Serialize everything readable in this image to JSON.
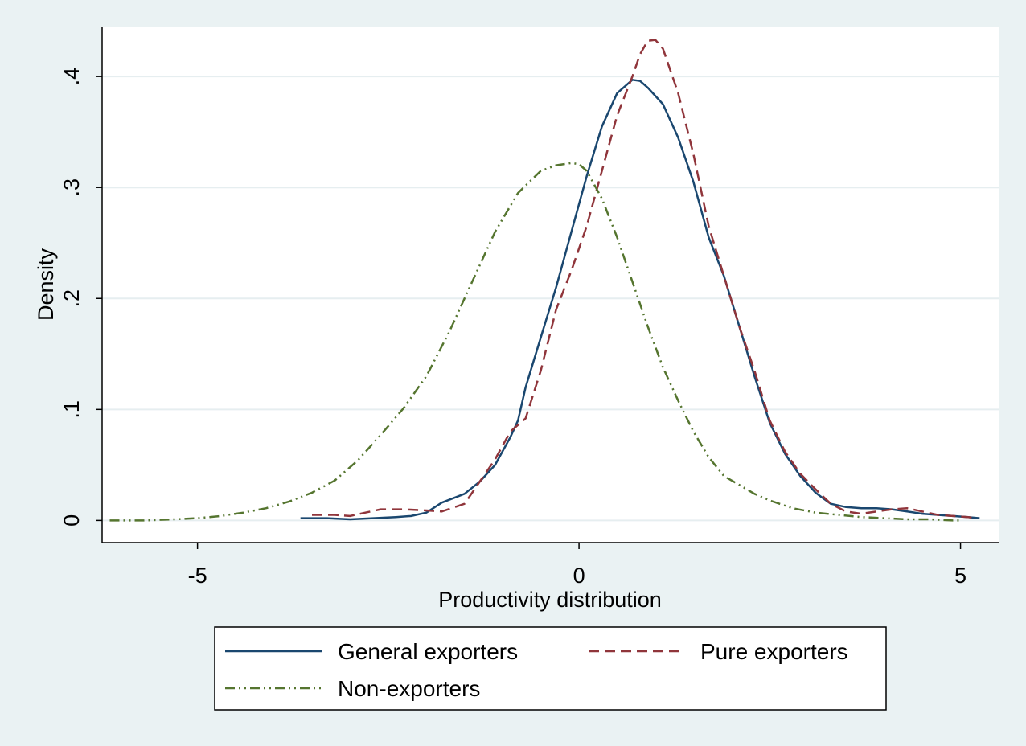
{
  "chart_data": {
    "type": "line",
    "title": "",
    "xlabel": "Productivity distribution",
    "ylabel": "Density",
    "xlim": [
      -6.25,
      5.5
    ],
    "ylim": [
      -0.02,
      0.445
    ],
    "grid": true,
    "legend_position": "bottom",
    "x_ticks": [
      -5,
      0,
      5
    ],
    "x_tick_labels": [
      "-5",
      "0",
      "5"
    ],
    "y_ticks": [
      0,
      0.1,
      0.2,
      0.3,
      0.4
    ],
    "y_tick_labels": [
      "0",
      ".1",
      ".2",
      ".3",
      ".4"
    ],
    "series": [
      {
        "name": "General exporters",
        "color": "#1a476f",
        "dash": "solid",
        "x": [
          -3.65,
          -3.3,
          -3.0,
          -2.7,
          -2.4,
          -2.2,
          -2.0,
          -1.8,
          -1.5,
          -1.3,
          -1.1,
          -0.9,
          -0.8,
          -0.7,
          -0.5,
          -0.3,
          -0.1,
          0.1,
          0.3,
          0.5,
          0.7,
          0.8,
          0.9,
          1.1,
          1.3,
          1.5,
          1.7,
          1.9,
          2.1,
          2.3,
          2.5,
          2.7,
          2.9,
          3.1,
          3.3,
          3.5,
          3.7,
          3.9,
          4.1,
          4.3,
          4.5,
          4.7,
          4.9,
          5.1,
          5.25
        ],
        "y": [
          0.002,
          0.002,
          0.001,
          0.002,
          0.003,
          0.004,
          0.007,
          0.016,
          0.024,
          0.035,
          0.05,
          0.075,
          0.09,
          0.12,
          0.165,
          0.21,
          0.26,
          0.31,
          0.355,
          0.385,
          0.397,
          0.396,
          0.39,
          0.375,
          0.345,
          0.305,
          0.255,
          0.22,
          0.175,
          0.13,
          0.088,
          0.06,
          0.04,
          0.025,
          0.015,
          0.012,
          0.011,
          0.011,
          0.01,
          0.008,
          0.006,
          0.005,
          0.004,
          0.003,
          0.002
        ]
      },
      {
        "name": "Pure exporters",
        "color": "#90353b",
        "dash": "dash",
        "x": [
          -3.5,
          -3.2,
          -3.0,
          -2.8,
          -2.6,
          -2.3,
          -2.0,
          -1.8,
          -1.5,
          -1.3,
          -1.1,
          -0.9,
          -0.7,
          -0.5,
          -0.3,
          -0.1,
          0.1,
          0.3,
          0.5,
          0.7,
          0.8,
          0.9,
          1.0,
          1.1,
          1.3,
          1.5,
          1.7,
          1.9,
          2.1,
          2.3,
          2.5,
          2.7,
          2.9,
          3.1,
          3.3,
          3.5,
          3.7,
          3.9,
          4.1,
          4.3,
          4.5,
          4.7,
          4.9,
          5.1,
          5.2
        ],
        "y": [
          0.005,
          0.005,
          0.004,
          0.007,
          0.01,
          0.01,
          0.009,
          0.008,
          0.015,
          0.035,
          0.055,
          0.08,
          0.092,
          0.135,
          0.19,
          0.225,
          0.265,
          0.315,
          0.365,
          0.4,
          0.42,
          0.432,
          0.433,
          0.425,
          0.385,
          0.33,
          0.265,
          0.22,
          0.175,
          0.135,
          0.09,
          0.062,
          0.042,
          0.028,
          0.015,
          0.008,
          0.006,
          0.008,
          0.01,
          0.011,
          0.008,
          0.005,
          0.004,
          0.003,
          0.002
        ]
      },
      {
        "name": "Non-exporters",
        "color": "#55752f",
        "dash": "dashdotdot",
        "x": [
          -6.15,
          -5.7,
          -5.3,
          -5.0,
          -4.7,
          -4.4,
          -4.1,
          -3.8,
          -3.5,
          -3.2,
          -2.9,
          -2.6,
          -2.3,
          -2.0,
          -1.7,
          -1.4,
          -1.1,
          -0.8,
          -0.5,
          -0.3,
          -0.1,
          0.0,
          0.1,
          0.3,
          0.5,
          0.7,
          0.9,
          1.1,
          1.3,
          1.5,
          1.7,
          1.9,
          2.1,
          2.3,
          2.5,
          2.8,
          3.1,
          3.4,
          3.7,
          4.0,
          4.3,
          4.6,
          4.9,
          5.0
        ],
        "y": [
          0.0,
          0.0,
          0.001,
          0.002,
          0.004,
          0.007,
          0.011,
          0.017,
          0.025,
          0.036,
          0.054,
          0.077,
          0.101,
          0.13,
          0.17,
          0.215,
          0.26,
          0.295,
          0.315,
          0.32,
          0.322,
          0.321,
          0.315,
          0.29,
          0.255,
          0.215,
          0.175,
          0.138,
          0.108,
          0.08,
          0.057,
          0.04,
          0.032,
          0.024,
          0.018,
          0.011,
          0.007,
          0.005,
          0.003,
          0.002,
          0.001,
          0.001,
          0.0,
          0.0
        ]
      }
    ]
  }
}
